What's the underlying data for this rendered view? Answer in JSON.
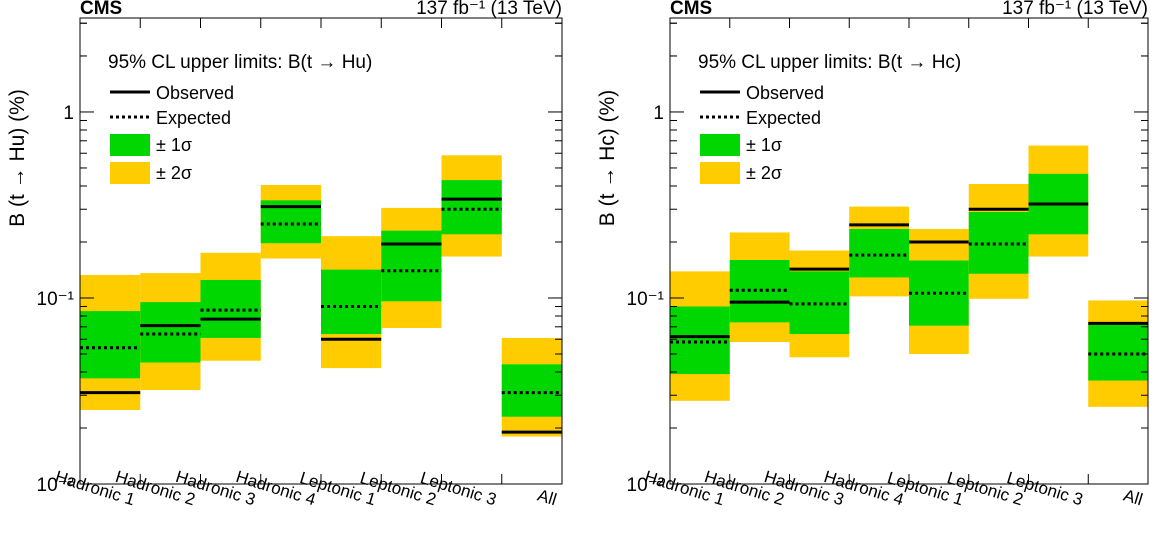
{
  "chart_data": [
    {
      "type": "bar",
      "log_y": true,
      "ylim": [
        0.01,
        3.2
      ],
      "ylabel": "B (t → Hu) (%)",
      "header_left": "CMS",
      "header_right": "137 fb⁻¹ (13 TeV)",
      "legend_title": "95% CL upper limits: B(t → Hu)",
      "legend_items": [
        "Observed",
        "Expected",
        "± 1σ",
        "± 2σ"
      ],
      "legend_position": "top-left",
      "y_tick_labels": [
        "10⁻²",
        "10⁻¹",
        "1"
      ],
      "categories": [
        "Hadronic 1",
        "Hadronic 2",
        "Hadronic 3",
        "Hadronic 4",
        "Leptonic 1",
        "Leptonic 2",
        "Leptonic 3",
        "All"
      ],
      "observed": [
        0.031,
        0.071,
        0.077,
        0.31,
        0.06,
        0.195,
        0.34,
        0.019
      ],
      "expected": [
        0.054,
        0.064,
        0.086,
        0.25,
        0.09,
        0.14,
        0.3,
        0.031
      ],
      "band_1sigma": [
        [
          0.037,
          0.085
        ],
        [
          0.045,
          0.095
        ],
        [
          0.061,
          0.125
        ],
        [
          0.197,
          0.335
        ],
        [
          0.064,
          0.142
        ],
        [
          0.096,
          0.23
        ],
        [
          0.22,
          0.43
        ],
        [
          0.023,
          0.044
        ]
      ],
      "band_2sigma": [
        [
          0.025,
          0.133
        ],
        [
          0.032,
          0.136
        ],
        [
          0.046,
          0.175
        ],
        [
          0.163,
          0.405
        ],
        [
          0.042,
          0.215
        ],
        [
          0.069,
          0.305
        ],
        [
          0.167,
          0.585
        ],
        [
          0.018,
          0.061
        ]
      ]
    },
    {
      "type": "bar",
      "log_y": true,
      "ylim": [
        0.01,
        3.2
      ],
      "ylabel": "B (t → Hc) (%)",
      "header_left": "CMS",
      "header_right": "137 fb⁻¹ (13 TeV)",
      "legend_title": "95% CL upper limits: B(t → Hc)",
      "legend_items": [
        "Observed",
        "Expected",
        "± 1σ",
        "± 2σ"
      ],
      "legend_position": "top-left",
      "y_tick_labels": [
        "10⁻²",
        "10⁻¹",
        "1"
      ],
      "categories": [
        "Hadronic 1",
        "Hadronic 2",
        "Hadronic 3",
        "Hadronic 4",
        "Leptonic 1",
        "Leptonic 2",
        "Leptonic 3",
        "All"
      ],
      "observed": [
        0.062,
        0.095,
        0.143,
        0.247,
        0.2,
        0.3,
        0.32,
        0.073
      ],
      "expected": [
        0.058,
        0.11,
        0.093,
        0.17,
        0.106,
        0.195,
        0.32,
        0.05
      ],
      "band_1sigma": [
        [
          0.039,
          0.09
        ],
        [
          0.074,
          0.16
        ],
        [
          0.064,
          0.139
        ],
        [
          0.129,
          0.235
        ],
        [
          0.071,
          0.159
        ],
        [
          0.135,
          0.29
        ],
        [
          0.22,
          0.465
        ],
        [
          0.036,
          0.072
        ]
      ],
      "band_2sigma": [
        [
          0.028,
          0.139
        ],
        [
          0.058,
          0.225
        ],
        [
          0.048,
          0.18
        ],
        [
          0.102,
          0.31
        ],
        [
          0.05,
          0.235
        ],
        [
          0.099,
          0.41
        ],
        [
          0.167,
          0.66
        ],
        [
          0.026,
          0.097
        ]
      ]
    }
  ],
  "colors": {
    "band_1sigma": "#00d600",
    "band_2sigma": "#ffcc00",
    "line": "#000000",
    "frame": "#000000"
  }
}
